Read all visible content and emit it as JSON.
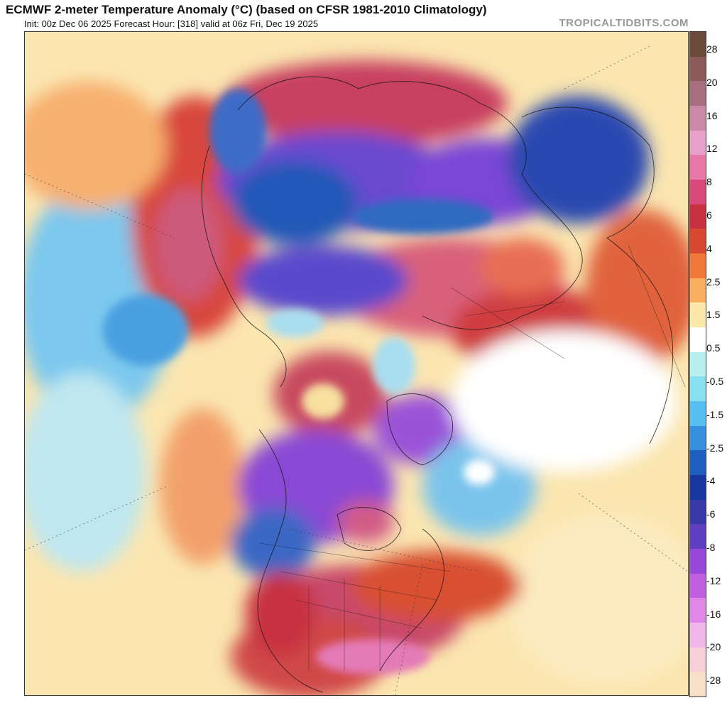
{
  "header": {
    "title": "ECMWF 2-meter Temperature Anomaly (°C) (based on CFSR 1981-2010 Climatology)",
    "subtitle": "Init: 00z Dec 06 2025   Forecast Hour: [318]   valid at 06z Fri, Dec 19 2025",
    "brand": "TROPICALTIDBITS.COM"
  },
  "map": {
    "projection": "north-polar-stereographic",
    "field": "2-meter temperature anomaly"
  },
  "colorbar": {
    "labels": [
      "28",
      "20",
      "16",
      "12",
      "8",
      "6",
      "4",
      "2.5",
      "1.5",
      "0.5",
      "-0.5",
      "-1.5",
      "-2.5",
      "-4",
      "-6",
      "-8",
      "-12",
      "-16",
      "-20",
      "-28"
    ],
    "colors": [
      "#6b4a3a",
      "#8b5a5a",
      "#a86e7e",
      "#c98aa8",
      "#e8a0c8",
      "#e878a8",
      "#d84878",
      "#c83040",
      "#d84830",
      "#f07838",
      "#f8b060",
      "#fce8a8",
      "#ffffff",
      "#b8f0f0",
      "#88e0f0",
      "#58c0f0",
      "#3890e0",
      "#2060c0",
      "#1838a0",
      "#3838a8",
      "#6040c0",
      "#9848d8",
      "#c060e0",
      "#e088e8",
      "#f0b8e8",
      "#f8d0d8",
      "#f8e0c8"
    ]
  }
}
